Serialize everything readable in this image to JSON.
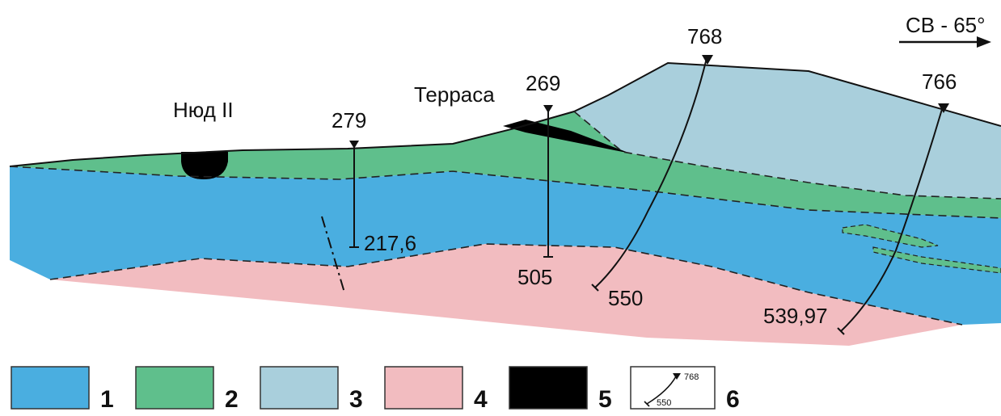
{
  "direction": {
    "text": "СВ - 65°"
  },
  "places": [
    {
      "id": "nyud",
      "text": "Нюд II"
    },
    {
      "id": "terrace",
      "text": "Терраса"
    }
  ],
  "boreholes": [
    {
      "id": "279",
      "top_label": "279",
      "bottom_label": "217,6"
    },
    {
      "id": "269",
      "top_label": "269",
      "bottom_label": "505"
    },
    {
      "id": "768",
      "top_label": "768",
      "bottom_label": "550"
    },
    {
      "id": "766",
      "top_label": "766",
      "bottom_label": "539,97"
    }
  ],
  "colors": {
    "layer1": "#4aaee0",
    "layer2": "#5fbf8c",
    "layer3": "#a9cfdc",
    "layer4": "#f2bcc0",
    "layer5": "#000000"
  },
  "legend": [
    {
      "number": "1",
      "color": "#4aaee0"
    },
    {
      "number": "2",
      "color": "#5fbf8c"
    },
    {
      "number": "3",
      "color": "#a9cfdc"
    },
    {
      "number": "4",
      "color": "#f2bcc0"
    },
    {
      "number": "5",
      "color": "#000000"
    },
    {
      "number": "6",
      "icon": "borehole-symbol-icon",
      "sample_top": "768",
      "sample_bottom": "550"
    }
  ]
}
